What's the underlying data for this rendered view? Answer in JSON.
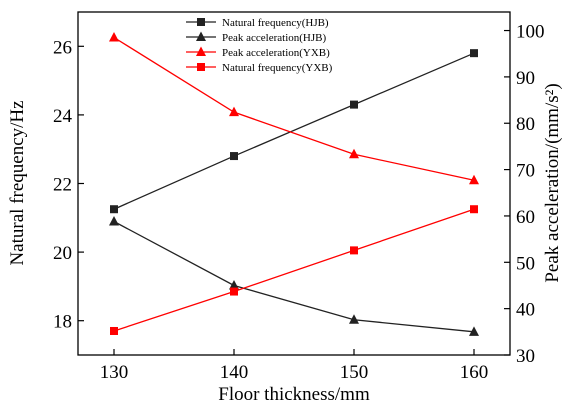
{
  "chart_data": {
    "type": "line",
    "xlabel": "Floor thickness/mm",
    "ylabel_left": "Natural frequency/Hz",
    "ylabel_right": "Peak acceleration/(mm/s²)",
    "x": [
      130,
      140,
      150,
      160
    ],
    "xlim": [
      127,
      163
    ],
    "ylim_left": [
      17,
      27
    ],
    "ylim_right": [
      30,
      104
    ],
    "x_ticks": [
      130,
      140,
      150,
      160
    ],
    "y_left_ticks": [
      18,
      20,
      22,
      24,
      26
    ],
    "y_right_ticks": [
      30,
      40,
      50,
      60,
      70,
      80,
      90,
      100
    ],
    "legend_position": "top-center",
    "series": [
      {
        "name": "Natural frequency(HJB)",
        "axis": "left",
        "marker": "square",
        "color": "#222222",
        "values": [
          21.25,
          22.8,
          24.3,
          25.8
        ]
      },
      {
        "name": "Peak acceleration(HJB)",
        "axis": "right",
        "marker": "triangle",
        "color": "#222222",
        "values": [
          58.8,
          45.0,
          37.6,
          35.0
        ]
      },
      {
        "name": "Peak acceleration(YXB)",
        "axis": "right",
        "marker": "triangle",
        "color": "#ff0000",
        "values": [
          98.5,
          82.4,
          73.3,
          67.7
        ]
      },
      {
        "name": "Natural frequency(YXB)",
        "axis": "left",
        "marker": "square",
        "color": "#ff0000",
        "values": [
          17.7,
          18.85,
          20.05,
          21.25
        ]
      }
    ]
  }
}
